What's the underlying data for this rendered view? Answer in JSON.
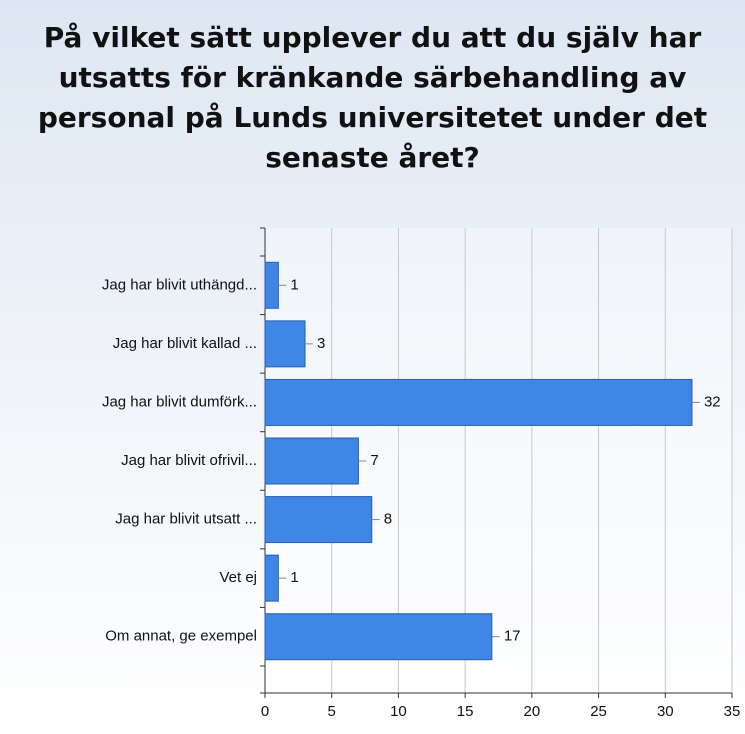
{
  "chart_data": {
    "type": "bar",
    "orientation": "horizontal",
    "title": "På vilket sätt upplever du att du själv har utsatts för kränkande särbehandling av personal på Lunds universitetet under det senaste året?",
    "categories": [
      "Jag har blivit uthängd...",
      "Jag har blivit kallad ...",
      "Jag har blivit dumförk...",
      "Jag har blivit ofrivil...",
      "Jag har blivit utsatt ...",
      "Vet ej",
      "Om annat, ge exempel"
    ],
    "values": [
      1,
      3,
      32,
      7,
      8,
      1,
      17
    ],
    "color": "#3f86e6",
    "xlim": [
      0,
      35
    ],
    "xticks": [
      0,
      5,
      10,
      15,
      20,
      25,
      30,
      35
    ],
    "grid": true
  }
}
